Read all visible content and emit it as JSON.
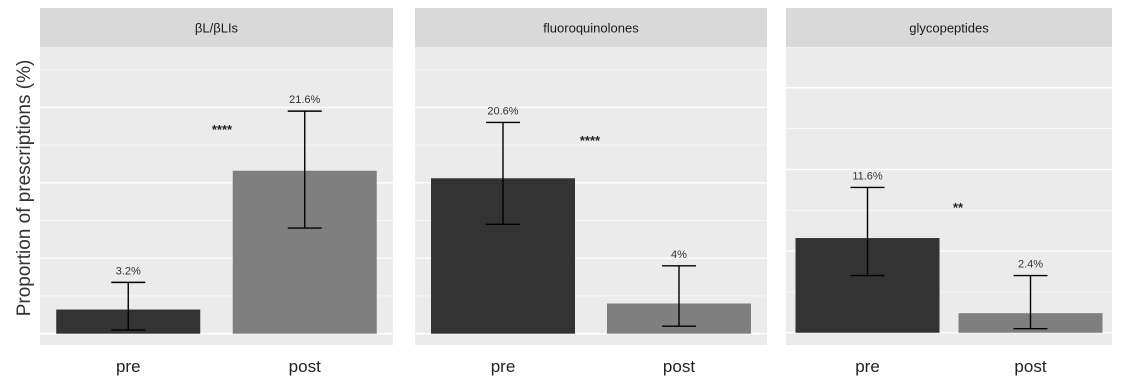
{
  "chart_data": {
    "type": "bar",
    "ylabel": "Proportion of prescriptions (%)",
    "categories": [
      "pre",
      "post"
    ],
    "colors": {
      "pre": "#333333",
      "post": "#7f7f7f",
      "panel_background": "#ebebeb",
      "strip_background": "#d9d9d9",
      "gridline": "#ffffff"
    },
    "grid": true,
    "panels": [
      {
        "title": "βL/βLIs",
        "values": [
          3.2,
          21.6
        ],
        "labels": [
          "3.2%",
          "21.6%"
        ],
        "ci_low": [
          0.5,
          14.0
        ],
        "ci_high": [
          6.8,
          29.5
        ],
        "significance": "****",
        "ylim": [
          -1.5,
          38
        ]
      },
      {
        "title": "fluoroquinolones",
        "values": [
          20.6,
          4.0
        ],
        "labels": [
          "20.6%",
          "4%"
        ],
        "ci_low": [
          14.5,
          1.0
        ],
        "ci_high": [
          28.0,
          9.0
        ],
        "significance": "****",
        "ylim": [
          -1.5,
          38
        ]
      },
      {
        "title": "glycopeptides",
        "values": [
          11.6,
          2.4
        ],
        "labels": [
          "11.6%",
          "2.4%"
        ],
        "ci_low": [
          7.0,
          0.5
        ],
        "ci_high": [
          17.8,
          7.0
        ],
        "significance": "**",
        "ylim": [
          -1.5,
          35
        ]
      }
    ]
  }
}
